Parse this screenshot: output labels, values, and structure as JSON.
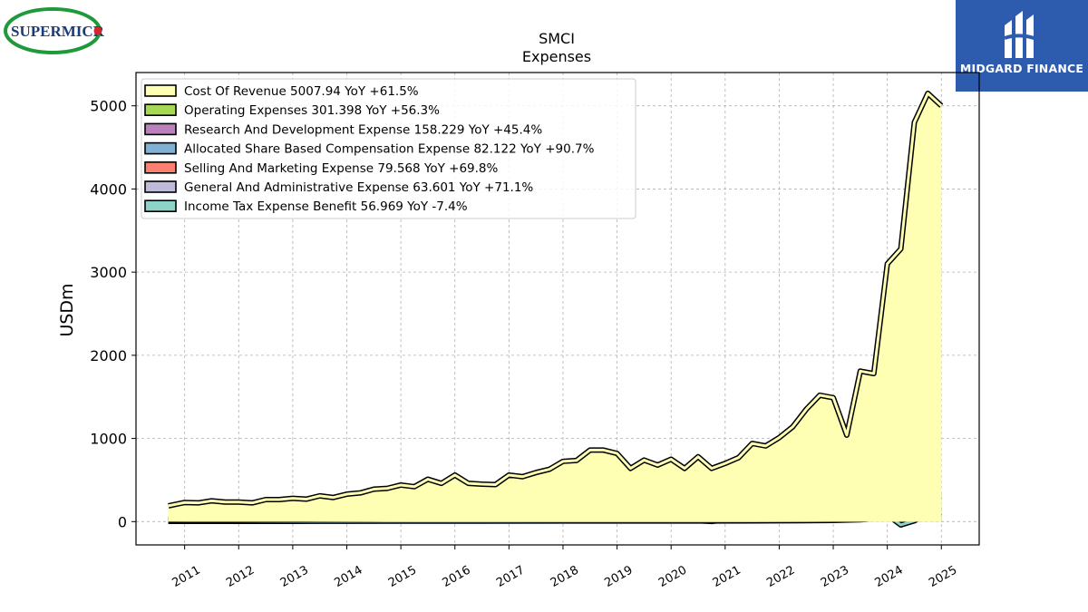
{
  "header": {
    "left_logo_text": "SUPERMICR",
    "right_logo_text": "MIDGARD FINANCE"
  },
  "chart_data": {
    "type": "area",
    "title": "SMCI",
    "subtitle": "Expenses",
    "xlabel": "",
    "ylabel": "USDm",
    "xlim": [
      2010.1,
      2025.7
    ],
    "ylim": [
      -280,
      5400
    ],
    "yticks": [
      0,
      1000,
      2000,
      3000,
      4000,
      5000
    ],
    "xticks": [
      2011,
      2012,
      2013,
      2014,
      2015,
      2016,
      2017,
      2018,
      2019,
      2020,
      2021,
      2022,
      2023,
      2024,
      2025
    ],
    "grid": true,
    "legend_position": "top-left",
    "series": [
      {
        "name": "Cost Of Revenue",
        "legend_label": "Cost Of Revenue  5007.94 YoY +61.5%",
        "color": "#ffffb3",
        "x": [
          2010.7,
          2011.0,
          2011.25,
          2011.5,
          2011.75,
          2012.0,
          2012.25,
          2012.5,
          2012.75,
          2013.0,
          2013.25,
          2013.5,
          2013.75,
          2014.0,
          2014.25,
          2014.5,
          2014.75,
          2015.0,
          2015.25,
          2015.5,
          2015.75,
          2016.0,
          2016.25,
          2016.5,
          2016.75,
          2017.0,
          2017.25,
          2017.5,
          2017.75,
          2018.0,
          2018.25,
          2018.5,
          2018.75,
          2019.0,
          2019.25,
          2019.5,
          2019.75,
          2020.0,
          2020.25,
          2020.5,
          2020.75,
          2021.0,
          2021.25,
          2021.5,
          2021.75,
          2022.0,
          2022.25,
          2022.5,
          2022.75,
          2023.0,
          2023.25,
          2023.5,
          2023.75,
          2024.0,
          2024.25,
          2024.5,
          2024.75,
          2025.0
        ],
        "values": [
          190,
          230,
          225,
          250,
          235,
          235,
          225,
          265,
          265,
          280,
          270,
          310,
          290,
          330,
          345,
          390,
          400,
          440,
          420,
          510,
          460,
          560,
          460,
          450,
          445,
          560,
          540,
          590,
          630,
          725,
          735,
          860,
          860,
          820,
          640,
          740,
          680,
          750,
          640,
          780,
          640,
          700,
          770,
          940,
          910,
          1010,
          1140,
          1350,
          1520,
          1490,
          1040,
          1810,
          1780,
          3100,
          3280,
          4800,
          5150,
          5000
        ]
      },
      {
        "name": "Operating Expenses",
        "legend_label": "Operating Expenses  301.398 YoY +56.3%",
        "color": "#a6d854",
        "x": [
          2010.7,
          2011.0,
          2011.5,
          2012.0,
          2012.5,
          2013.0,
          2013.5,
          2014.0,
          2014.5,
          2015.0,
          2015.5,
          2016.0,
          2016.5,
          2017.0,
          2017.5,
          2018.0,
          2018.5,
          2019.0,
          2019.5,
          2020.0,
          2020.25,
          2020.5,
          2020.75,
          2021.0,
          2021.5,
          2022.0,
          2022.5,
          2023.0,
          2023.25,
          2023.5,
          2023.75,
          2024.0,
          2024.25,
          2024.5,
          2024.75,
          2025.0
        ],
        "values": [
          30,
          35,
          40,
          42,
          45,
          48,
          52,
          58,
          62,
          70,
          78,
          86,
          88,
          92,
          100,
          110,
          120,
          125,
          130,
          140,
          145,
          140,
          130,
          135,
          140,
          150,
          160,
          170,
          175,
          190,
          215,
          230,
          255,
          285,
          295,
          301
        ]
      },
      {
        "name": "Research And Development Expense",
        "legend_label": "Research And Development Expense  158.229 YoY +45.4%",
        "color": "#bc80bd",
        "x": [
          2010.7,
          2011.5,
          2012.5,
          2013.5,
          2014.5,
          2015.5,
          2016.5,
          2017.5,
          2018.5,
          2019.5,
          2020.5,
          2021.5,
          2022.5,
          2023.0,
          2023.5,
          2024.0,
          2024.5,
          2025.0
        ],
        "values": [
          15,
          18,
          22,
          26,
          30,
          36,
          40,
          45,
          50,
          55,
          60,
          65,
          75,
          82,
          95,
          115,
          140,
          158
        ]
      },
      {
        "name": "Allocated Share Based Compensation Expense",
        "legend_label": "Allocated Share Based Compensation Expense  82.122 YoY +90.7%",
        "color": "#80b1d3",
        "x": [
          2010.7,
          2012.0,
          2013.5,
          2015.0,
          2016.5,
          2018.0,
          2019.5,
          2020.5,
          2021.5,
          2022.5,
          2023.0,
          2023.5,
          2024.0,
          2024.5,
          2025.0
        ],
        "values": [
          3,
          4,
          5,
          6,
          6,
          7,
          8,
          8,
          9,
          12,
          15,
          22,
          45,
          60,
          82
        ]
      },
      {
        "name": "Selling And Marketing Expense",
        "legend_label": "Selling And Marketing Expense  79.568 YoY +69.8%",
        "color": "#fb8072",
        "x": [
          2010.7,
          2012.0,
          2013.5,
          2015.0,
          2016.5,
          2018.0,
          2019.5,
          2020.5,
          2021.5,
          2022.5,
          2023.0,
          2023.5,
          2024.0,
          2024.5,
          2025.0
        ],
        "values": [
          7,
          8,
          9,
          10,
          12,
          14,
          16,
          18,
          20,
          25,
          28,
          35,
          45,
          60,
          80
        ]
      },
      {
        "name": "General And Administrative Expense",
        "legend_label": "General And Administrative Expense  63.601 YoY +71.1%",
        "color": "#bebada",
        "x": [
          2010.7,
          2012.0,
          2013.5,
          2015.0,
          2016.5,
          2018.0,
          2019.5,
          2020.5,
          2021.5,
          2022.5,
          2023.0,
          2023.5,
          2024.0,
          2024.5,
          2025.0
        ],
        "values": [
          8,
          9,
          10,
          12,
          14,
          18,
          22,
          25,
          28,
          30,
          32,
          38,
          48,
          55,
          64
        ]
      },
      {
        "name": "Income Tax Expense Benefit",
        "legend_label": "Income Tax Expense Benefit  56.969 YoY -7.4%",
        "color": "#8dd3c7",
        "x": [
          2010.7,
          2011.0,
          2011.5,
          2012.0,
          2012.5,
          2013.0,
          2013.5,
          2014.0,
          2014.5,
          2015.0,
          2015.5,
          2016.0,
          2016.5,
          2017.0,
          2017.5,
          2018.0,
          2018.25,
          2018.5,
          2019.0,
          2019.5,
          2020.0,
          2020.5,
          2020.75,
          2021.0,
          2021.5,
          2022.0,
          2022.5,
          2022.75,
          2023.0,
          2023.25,
          2023.5,
          2023.75,
          2024.0,
          2024.25,
          2024.5,
          2024.75,
          2025.0
        ],
        "values": [
          5,
          8,
          10,
          6,
          8,
          4,
          12,
          15,
          18,
          10,
          22,
          20,
          12,
          18,
          20,
          10,
          35,
          20,
          10,
          15,
          20,
          12,
          2,
          22,
          10,
          22,
          45,
          60,
          50,
          20,
          40,
          30,
          80,
          -40,
          10,
          90,
          57
        ]
      }
    ]
  }
}
